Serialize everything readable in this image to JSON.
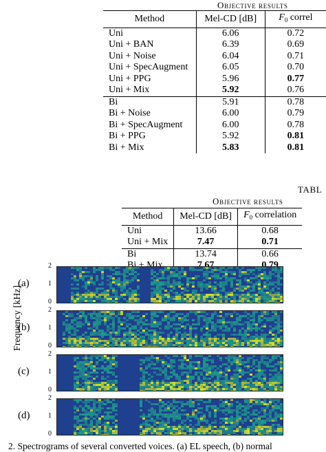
{
  "table1": {
    "caption": "Objective results",
    "headers": [
      "Method",
      "Mel-CD [dB]",
      "F0 correl"
    ],
    "rows": [
      {
        "method": "Uni",
        "melcd": "6.06",
        "f0": "0.72",
        "melcd_bold": false,
        "f0_bold": false
      },
      {
        "method": "Uni + BAN",
        "melcd": "6.39",
        "f0": "0.69",
        "melcd_bold": false,
        "f0_bold": false
      },
      {
        "method": "Uni + Noise",
        "melcd": "6.04",
        "f0": "0.71",
        "melcd_bold": false,
        "f0_bold": false
      },
      {
        "method": "Uni + SpecAugment",
        "melcd": "6.05",
        "f0": "0.70",
        "melcd_bold": false,
        "f0_bold": false
      },
      {
        "method": "Uni + PPG",
        "melcd": "5.96",
        "f0": "0.77",
        "melcd_bold": false,
        "f0_bold": true
      },
      {
        "method": "Uni + Mix",
        "melcd": "5.92",
        "f0": "0.76",
        "melcd_bold": true,
        "f0_bold": false
      },
      {
        "method": "Bi",
        "melcd": "5.91",
        "f0": "0.78",
        "melcd_bold": false,
        "f0_bold": false
      },
      {
        "method": "Bi + Noise",
        "melcd": "6.00",
        "f0": "0.79",
        "melcd_bold": false,
        "f0_bold": false
      },
      {
        "method": "Bi + SpecAugment",
        "melcd": "6.00",
        "f0": "0.78",
        "melcd_bold": false,
        "f0_bold": false
      },
      {
        "method": "Bi + PPG",
        "melcd": "5.92",
        "f0": "0.81",
        "melcd_bold": false,
        "f0_bold": true
      },
      {
        "method": "Bi + Mix",
        "melcd": "5.83",
        "f0": "0.81",
        "melcd_bold": true,
        "f0_bold": true
      }
    ]
  },
  "table2": {
    "label": "TABL",
    "caption": "Objective results",
    "headers": [
      "Method",
      "Mel-CD [dB]",
      "F0 correlation"
    ],
    "rows": [
      {
        "method": "Uni",
        "melcd": "13.66",
        "f0": "0.68",
        "melcd_bold": false,
        "f0_bold": false
      },
      {
        "method": "Uni + Mix",
        "melcd": "7.47",
        "f0": "0.71",
        "melcd_bold": true,
        "f0_bold": true
      },
      {
        "method": "Bi",
        "melcd": "13.74",
        "f0": "0.66",
        "melcd_bold": false,
        "f0_bold": false
      },
      {
        "method": "Bi + Mix",
        "melcd": "7.67",
        "f0": "0.79",
        "melcd_bold": true,
        "f0_bold": true
      }
    ]
  },
  "figure": {
    "ylabel": "Frequency [kHz]",
    "panels": [
      {
        "label": "(a)",
        "ticks": [
          "2",
          "1",
          "0"
        ]
      },
      {
        "label": "(b)",
        "ticks": [
          "2",
          "1",
          "0"
        ]
      },
      {
        "label": "(c)",
        "ticks": [
          "2",
          "1",
          "0"
        ]
      },
      {
        "label": "(d)",
        "ticks": [
          "2",
          "1",
          "0"
        ]
      }
    ],
    "caption": "2.  Spectrograms of several converted voices. (a) EL speech, (b) normal"
  },
  "colors": {
    "spec_dark": "#1f3f8f",
    "spec_mid": "#1f9a8a",
    "spec_bright": "#d8e21f"
  }
}
